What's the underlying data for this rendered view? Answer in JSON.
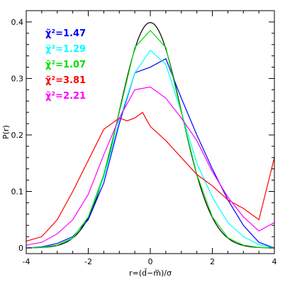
{
  "chart_data": {
    "type": "line",
    "xlabel": "r=(d̃−m̅)/σ",
    "ylabel": "P(r)",
    "xlim": [
      -4,
      4
    ],
    "ylim": [
      -0.01,
      0.42
    ],
    "xticks": [
      -4,
      -2,
      0,
      2,
      4
    ],
    "xtick_labels": [
      "-4",
      "-2",
      "0",
      "2",
      "4"
    ],
    "yticks": [
      0,
      0.1,
      0.2,
      0.3,
      0.4
    ],
    "ytick_labels": [
      "0",
      "0.1",
      "0.2",
      "0.3",
      "0.4"
    ],
    "grid": false,
    "legend_position": "top-left",
    "reference_curve": {
      "label": "Gaussian",
      "color": "#000000",
      "mean": 0,
      "sigma": 1
    },
    "series": [
      {
        "name": "χ̃²=1.47",
        "color": "#0000ff",
        "x": [
          -4.0,
          -3.5,
          -3.0,
          -2.5,
          -2.0,
          -1.5,
          -1.0,
          -0.5,
          0.0,
          0.5,
          1.0,
          1.5,
          2.0,
          2.5,
          3.0,
          3.5,
          4.0
        ],
        "y": [
          0.0,
          0.002,
          0.008,
          0.02,
          0.05,
          0.115,
          0.22,
          0.31,
          0.32,
          0.335,
          0.265,
          0.2,
          0.14,
          0.085,
          0.04,
          0.01,
          0.0
        ]
      },
      {
        "name": "χ̃²=1.29",
        "color": "#00ffff",
        "x": [
          -4.0,
          -3.5,
          -3.0,
          -2.5,
          -2.0,
          -1.5,
          -1.0,
          -0.5,
          0.0,
          0.5,
          1.0,
          1.5,
          2.0,
          2.5,
          3.0,
          3.5,
          4.0
        ],
        "y": [
          0.0,
          0.001,
          0.005,
          0.018,
          0.055,
          0.125,
          0.225,
          0.31,
          0.35,
          0.325,
          0.24,
          0.15,
          0.09,
          0.045,
          0.02,
          0.006,
          0.0
        ]
      },
      {
        "name": "χ̃²=1.07",
        "color": "#00dd00",
        "x": [
          -4.0,
          -3.5,
          -3.0,
          -2.5,
          -2.0,
          -1.5,
          -1.0,
          -0.5,
          0.0,
          0.5,
          1.0,
          1.5,
          2.0,
          2.5,
          3.0,
          3.5,
          4.0
        ],
        "y": [
          0.0,
          0.001,
          0.005,
          0.017,
          0.055,
          0.13,
          0.24,
          0.355,
          0.385,
          0.355,
          0.24,
          0.13,
          0.055,
          0.018,
          0.005,
          0.001,
          0.0
        ]
      },
      {
        "name": "χ̃²=3.81",
        "color": "#ff0000",
        "x": [
          -4.0,
          -3.5,
          -3.0,
          -2.5,
          -2.0,
          -1.5,
          -1.0,
          -0.75,
          -0.5,
          -0.25,
          0.0,
          0.5,
          1.0,
          1.5,
          2.0,
          2.5,
          3.0,
          3.5,
          4.0
        ],
        "y": [
          0.012,
          0.02,
          0.05,
          0.1,
          0.155,
          0.21,
          0.23,
          0.225,
          0.23,
          0.24,
          0.215,
          0.19,
          0.16,
          0.13,
          0.11,
          0.085,
          0.07,
          0.05,
          0.16
        ]
      },
      {
        "name": "χ̃²=2.21",
        "color": "#ff00ff",
        "x": [
          -4.0,
          -3.5,
          -3.0,
          -2.5,
          -2.0,
          -1.5,
          -1.0,
          -0.5,
          0.0,
          0.5,
          1.0,
          1.5,
          2.0,
          2.5,
          3.0,
          3.5,
          4.0
        ],
        "y": [
          0.005,
          0.01,
          0.025,
          0.05,
          0.095,
          0.165,
          0.23,
          0.28,
          0.285,
          0.265,
          0.23,
          0.19,
          0.135,
          0.09,
          0.055,
          0.03,
          0.045
        ]
      }
    ]
  }
}
